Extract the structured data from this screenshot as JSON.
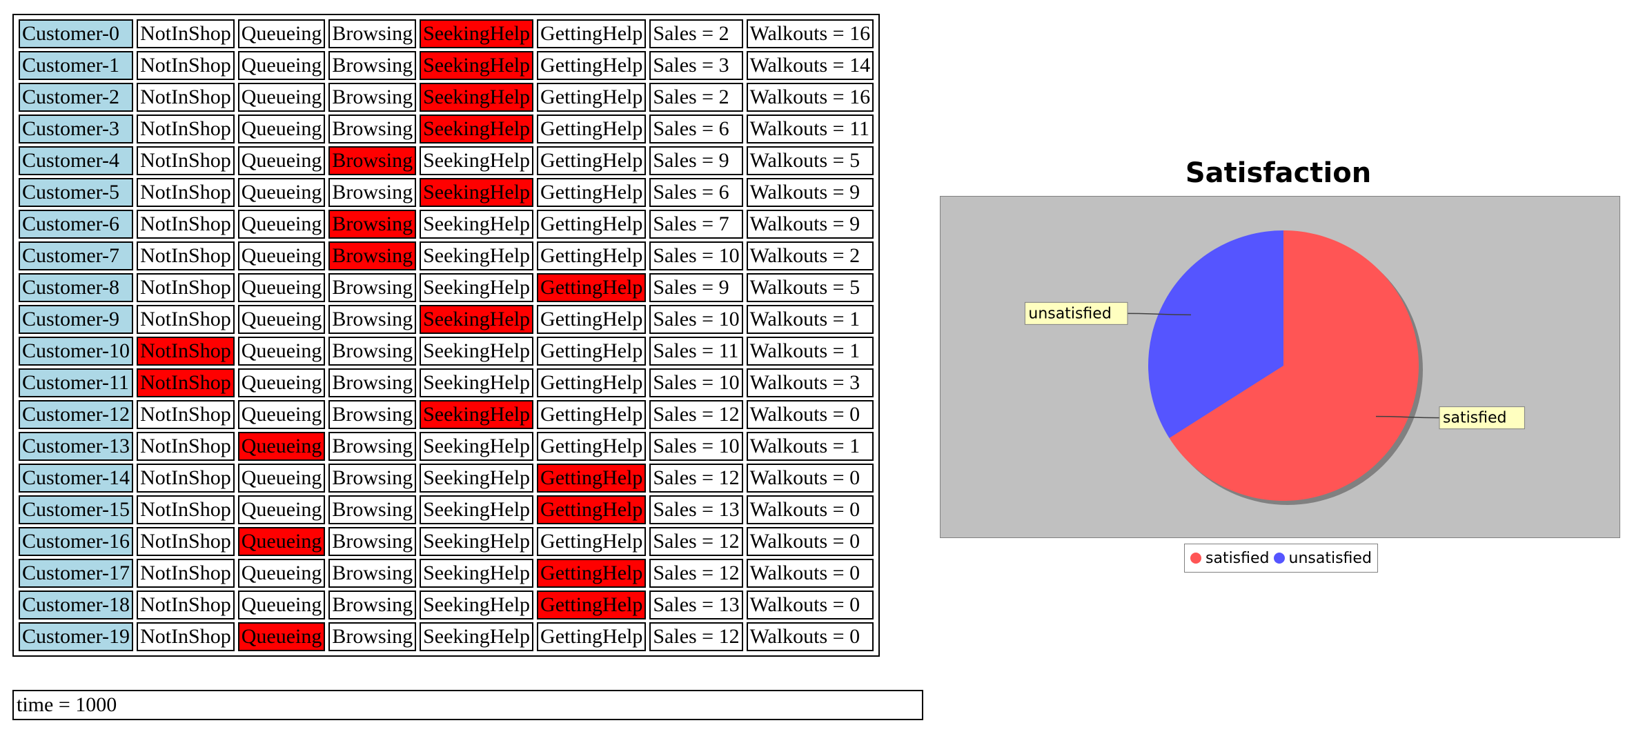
{
  "headers": {
    "not_in_shop": "NotInShop",
    "queueing": "Queueing",
    "browsing": "Browsing",
    "seeking_help": "SeekingHelp",
    "getting_help": "GettingHelp"
  },
  "customers": [
    {
      "name": "Customer-0",
      "state": "SeekingHelp",
      "sales": "Sales = 2",
      "walkouts": "Walkouts = 16"
    },
    {
      "name": "Customer-1",
      "state": "SeekingHelp",
      "sales": "Sales = 3",
      "walkouts": "Walkouts = 14"
    },
    {
      "name": "Customer-2",
      "state": "SeekingHelp",
      "sales": "Sales = 2",
      "walkouts": "Walkouts = 16"
    },
    {
      "name": "Customer-3",
      "state": "SeekingHelp",
      "sales": "Sales = 6",
      "walkouts": "Walkouts = 11"
    },
    {
      "name": "Customer-4",
      "state": "Browsing",
      "sales": "Sales = 9",
      "walkouts": "Walkouts = 5"
    },
    {
      "name": "Customer-5",
      "state": "SeekingHelp",
      "sales": "Sales = 6",
      "walkouts": "Walkouts = 9"
    },
    {
      "name": "Customer-6",
      "state": "Browsing",
      "sales": "Sales = 7",
      "walkouts": "Walkouts = 9"
    },
    {
      "name": "Customer-7",
      "state": "Browsing",
      "sales": "Sales = 10",
      "walkouts": "Walkouts = 2"
    },
    {
      "name": "Customer-8",
      "state": "GettingHelp",
      "sales": "Sales = 9",
      "walkouts": "Walkouts = 5"
    },
    {
      "name": "Customer-9",
      "state": "SeekingHelp",
      "sales": "Sales = 10",
      "walkouts": "Walkouts = 1"
    },
    {
      "name": "Customer-10",
      "state": "NotInShop",
      "sales": "Sales = 11",
      "walkouts": "Walkouts = 1"
    },
    {
      "name": "Customer-11",
      "state": "NotInShop",
      "sales": "Sales = 10",
      "walkouts": "Walkouts = 3"
    },
    {
      "name": "Customer-12",
      "state": "SeekingHelp",
      "sales": "Sales = 12",
      "walkouts": "Walkouts = 0"
    },
    {
      "name": "Customer-13",
      "state": "Queueing",
      "sales": "Sales = 10",
      "walkouts": "Walkouts = 1"
    },
    {
      "name": "Customer-14",
      "state": "GettingHelp",
      "sales": "Sales = 12",
      "walkouts": "Walkouts = 0"
    },
    {
      "name": "Customer-15",
      "state": "GettingHelp",
      "sales": "Sales = 13",
      "walkouts": "Walkouts = 0"
    },
    {
      "name": "Customer-16",
      "state": "Queueing",
      "sales": "Sales = 12",
      "walkouts": "Walkouts = 0"
    },
    {
      "name": "Customer-17",
      "state": "GettingHelp",
      "sales": "Sales = 12",
      "walkouts": "Walkouts = 0"
    },
    {
      "name": "Customer-18",
      "state": "GettingHelp",
      "sales": "Sales = 13",
      "walkouts": "Walkouts = 0"
    },
    {
      "name": "Customer-19",
      "state": "Queueing",
      "sales": "Sales = 12",
      "walkouts": "Walkouts = 0"
    }
  ],
  "time_label": "time = 1000",
  "colors": {
    "customer_cell": "#add8e6",
    "active_state": "#ff0000",
    "satisfied": "#ff5555",
    "unsatisfied": "#5555ff",
    "plot_background": "#c0c0c0",
    "label_background": "#ffffc0"
  },
  "chart_data": {
    "type": "pie",
    "title": "Satisfaction",
    "slices": [
      {
        "label": "satisfied",
        "value": 66,
        "color": "#ff5555"
      },
      {
        "label": "unsatisfied",
        "value": 34,
        "color": "#5555ff"
      }
    ],
    "legend": {
      "placement": "bottom",
      "entries": [
        "satisfied",
        "unsatisfied"
      ]
    }
  }
}
